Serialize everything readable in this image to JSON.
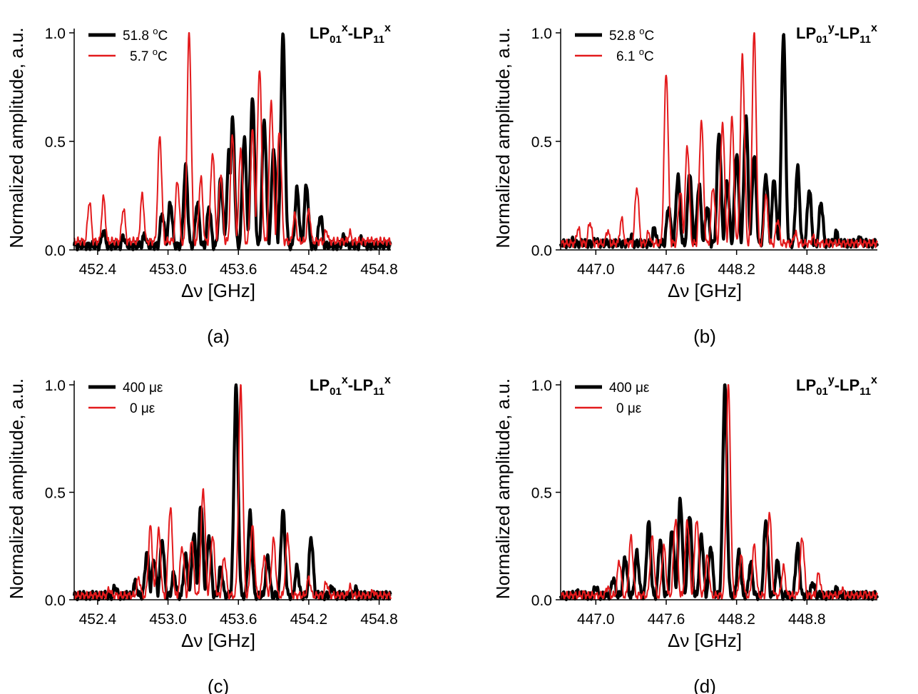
{
  "figure": {
    "panels": [
      {
        "id": "a",
        "panel_label": "(a)",
        "title": {
          "base1": "LP",
          "sub1": "01",
          "sup1": "x",
          "dash": "-",
          "base2": "LP",
          "sub2": "11",
          "sup2": "x"
        },
        "xlabel": "Δν [GHz]",
        "ylabel": "Normalized amplitude, a.u.",
        "xlim": [
          452.2,
          454.9
        ],
        "ylim": [
          0.0,
          1.0
        ],
        "xticks": [
          452.4,
          453.0,
          453.6,
          454.2,
          454.8
        ],
        "xtick_labels": [
          "452.4",
          "453.0",
          "453.6",
          "454.2",
          "454.8"
        ],
        "yticks": [
          0.0,
          0.5,
          1.0
        ],
        "ytick_labels": [
          "0.0",
          "0.5",
          "1.0"
        ],
        "series": [
          {
            "name": "51.8 °C",
            "legend_value": "51.8 ",
            "legend_sup": "o",
            "legend_unit": "C",
            "color": "#000000",
            "thick": true,
            "peaks": [
              [
                452.45,
                0.09
              ],
              [
                452.62,
                0.06
              ],
              [
                452.8,
                0.07
              ],
              [
                452.95,
                0.17
              ],
              [
                453.02,
                0.22
              ],
              [
                453.15,
                0.38
              ],
              [
                453.25,
                0.22
              ],
              [
                453.35,
                0.2
              ],
              [
                453.45,
                0.33
              ],
              [
                453.52,
                0.45
              ],
              [
                453.55,
                0.6
              ],
              [
                453.65,
                0.52
              ],
              [
                453.72,
                0.71
              ],
              [
                453.82,
                0.6
              ],
              [
                453.9,
                0.47
              ],
              [
                453.98,
                1.0
              ],
              [
                454.1,
                0.28
              ],
              [
                454.18,
                0.3
              ],
              [
                454.3,
                0.16
              ],
              [
                454.5,
                0.06
              ],
              [
                454.65,
                0.05
              ],
              [
                454.8,
                0.03
              ]
            ],
            "baseline": 0.02
          },
          {
            "name": "5.7 °C",
            "legend_value": "5.7 ",
            "legend_sup": "o",
            "legend_unit": "C",
            "color": "#e31a1c",
            "thick": false,
            "peaks": [
              [
                452.33,
                0.22
              ],
              [
                452.45,
                0.24
              ],
              [
                452.62,
                0.19
              ],
              [
                452.78,
                0.25
              ],
              [
                452.93,
                0.52
              ],
              [
                453.08,
                0.32
              ],
              [
                453.18,
                1.0
              ],
              [
                453.28,
                0.33
              ],
              [
                453.38,
                0.45
              ],
              [
                453.45,
                0.35
              ],
              [
                453.55,
                0.53
              ],
              [
                453.62,
                0.46
              ],
              [
                453.72,
                0.55
              ],
              [
                453.78,
                0.84
              ],
              [
                453.88,
                0.69
              ],
              [
                453.95,
                0.55
              ],
              [
                454.08,
                0.16
              ],
              [
                454.2,
                0.18
              ],
              [
                454.35,
                0.09
              ],
              [
                454.55,
                0.08
              ],
              [
                454.72,
                0.05
              ]
            ],
            "baseline": 0.04
          }
        ]
      },
      {
        "id": "b",
        "panel_label": "(b)",
        "title": {
          "base1": "LP",
          "sub1": "01",
          "sup1": "y",
          "dash": "-",
          "base2": "LP",
          "sub2": "11",
          "sup2": "x"
        },
        "xlabel": "Δν [GHz]",
        "ylabel": "Normalized amplitude, a.u.",
        "xlim": [
          446.7,
          449.4
        ],
        "ylim": [
          0.0,
          1.0
        ],
        "xticks": [
          447.0,
          447.6,
          448.2,
          448.8
        ],
        "xtick_labels": [
          "447.0",
          "447.6",
          "448.2",
          "448.8"
        ],
        "yticks": [
          0.0,
          0.5,
          1.0
        ],
        "ytick_labels": [
          "0.0",
          "0.5",
          "1.0"
        ],
        "series": [
          {
            "name": "52.8 °C",
            "legend_value": "52.8 ",
            "legend_sup": "o",
            "legend_unit": "C",
            "color": "#000000",
            "thick": true,
            "peaks": [
              [
                446.8,
                0.04
              ],
              [
                447.0,
                0.05
              ],
              [
                447.3,
                0.06
              ],
              [
                447.5,
                0.1
              ],
              [
                447.62,
                0.2
              ],
              [
                447.7,
                0.34
              ],
              [
                447.8,
                0.36
              ],
              [
                447.88,
                0.3
              ],
              [
                447.95,
                0.2
              ],
              [
                448.05,
                0.54
              ],
              [
                448.12,
                0.32
              ],
              [
                448.2,
                0.45
              ],
              [
                448.28,
                0.61
              ],
              [
                448.35,
                0.44
              ],
              [
                448.45,
                0.35
              ],
              [
                448.52,
                0.33
              ],
              [
                448.6,
                1.0
              ],
              [
                448.72,
                0.38
              ],
              [
                448.82,
                0.28
              ],
              [
                448.92,
                0.22
              ],
              [
                449.05,
                0.08
              ],
              [
                449.25,
                0.06
              ]
            ],
            "baseline": 0.03
          },
          {
            "name": "6.1 °C",
            "legend_value": "6.1 ",
            "legend_sup": "o",
            "legend_unit": "C",
            "color": "#e31a1c",
            "thick": false,
            "peaks": [
              [
                446.85,
                0.1
              ],
              [
                446.95,
                0.13
              ],
              [
                447.1,
                0.09
              ],
              [
                447.22,
                0.14
              ],
              [
                447.35,
                0.29
              ],
              [
                447.45,
                0.08
              ],
              [
                447.6,
                0.82
              ],
              [
                447.72,
                0.27
              ],
              [
                447.78,
                0.48
              ],
              [
                447.9,
                0.6
              ],
              [
                448.0,
                0.29
              ],
              [
                448.08,
                0.59
              ],
              [
                448.16,
                0.61
              ],
              [
                448.25,
                0.9
              ],
              [
                448.35,
                1.0
              ],
              [
                448.45,
                0.25
              ],
              [
                448.55,
                0.14
              ],
              [
                448.7,
                0.08
              ],
              [
                448.85,
                0.06
              ],
              [
                449.0,
                0.03
              ]
            ],
            "baseline": 0.03
          }
        ]
      },
      {
        "id": "c",
        "panel_label": "(c)",
        "title": {
          "base1": "LP",
          "sub1": "01",
          "sup1": "x",
          "dash": "-",
          "base2": "LP",
          "sub2": "11",
          "sup2": "x"
        },
        "xlabel": "Δν [GHz]",
        "ylabel": "Normalized amplitude, a.u.",
        "xlim": [
          452.2,
          454.9
        ],
        "ylim": [
          0.0,
          1.0
        ],
        "xticks": [
          452.4,
          453.0,
          453.6,
          454.2,
          454.8
        ],
        "xtick_labels": [
          "452.4",
          "453.0",
          "453.6",
          "454.2",
          "454.8"
        ],
        "yticks": [
          0.0,
          0.5,
          1.0
        ],
        "ytick_labels": [
          "0.0",
          "0.5",
          "1.0"
        ],
        "series": [
          {
            "name": "400 με",
            "legend_value": "400 με",
            "legend_sup": "",
            "legend_unit": "",
            "color": "#000000",
            "thick": true,
            "peaks": [
              [
                452.55,
                0.06
              ],
              [
                452.72,
                0.08
              ],
              [
                452.82,
                0.22
              ],
              [
                452.88,
                0.19
              ],
              [
                452.95,
                0.28
              ],
              [
                453.05,
                0.12
              ],
              [
                453.15,
                0.2
              ],
              [
                453.22,
                0.3
              ],
              [
                453.28,
                0.45
              ],
              [
                453.35,
                0.3
              ],
              [
                453.45,
                0.15
              ],
              [
                453.58,
                1.0
              ],
              [
                453.7,
                0.4
              ],
              [
                453.85,
                0.2
              ],
              [
                453.98,
                0.42
              ],
              [
                454.1,
                0.15
              ],
              [
                454.22,
                0.29
              ],
              [
                454.4,
                0.06
              ],
              [
                454.6,
                0.05
              ],
              [
                454.8,
                0.03
              ]
            ],
            "baseline": 0.02
          },
          {
            "name": "0 με",
            "legend_value": "0 με",
            "legend_sup": "",
            "legend_unit": "",
            "color": "#e31a1c",
            "thick": false,
            "peaks": [
              [
                452.5,
                0.05
              ],
              [
                452.75,
                0.1
              ],
              [
                452.85,
                0.34
              ],
              [
                452.92,
                0.32
              ],
              [
                453.02,
                0.43
              ],
              [
                453.12,
                0.25
              ],
              [
                453.2,
                0.28
              ],
              [
                453.3,
                0.52
              ],
              [
                453.38,
                0.3
              ],
              [
                453.48,
                0.2
              ],
              [
                453.62,
                1.0
              ],
              [
                453.72,
                0.34
              ],
              [
                453.82,
                0.2
              ],
              [
                453.9,
                0.28
              ],
              [
                454.02,
                0.3
              ],
              [
                454.2,
                0.1
              ],
              [
                454.35,
                0.08
              ],
              [
                454.55,
                0.06
              ],
              [
                454.75,
                0.04
              ]
            ],
            "baseline": 0.02
          }
        ]
      },
      {
        "id": "d",
        "panel_label": "(d)",
        "title": {
          "base1": "LP",
          "sub1": "01",
          "sup1": "y",
          "dash": "-",
          "base2": "LP",
          "sub2": "11",
          "sup2": "x"
        },
        "xlabel": "Δν [GHz]",
        "ylabel": "Normalized amplitude, a.u.",
        "xlim": [
          446.7,
          449.4
        ],
        "ylim": [
          0.0,
          1.0
        ],
        "xticks": [
          447.0,
          447.6,
          448.2,
          448.8
        ],
        "xtick_labels": [
          "447.0",
          "447.6",
          "448.2",
          "448.8"
        ],
        "yticks": [
          0.0,
          0.5,
          1.0
        ],
        "ytick_labels": [
          "0.0",
          "0.5",
          "1.0"
        ],
        "series": [
          {
            "name": "400 με",
            "legend_value": "400 με",
            "legend_sup": "",
            "legend_unit": "",
            "color": "#000000",
            "thick": true,
            "peaks": [
              [
                446.85,
                0.04
              ],
              [
                447.0,
                0.06
              ],
              [
                447.15,
                0.1
              ],
              [
                447.25,
                0.2
              ],
              [
                447.35,
                0.22
              ],
              [
                447.45,
                0.36
              ],
              [
                447.55,
                0.28
              ],
              [
                447.65,
                0.33
              ],
              [
                447.72,
                0.47
              ],
              [
                447.8,
                0.4
              ],
              [
                447.9,
                0.3
              ],
              [
                447.98,
                0.25
              ],
              [
                448.1,
                1.0
              ],
              [
                448.22,
                0.22
              ],
              [
                448.32,
                0.17
              ],
              [
                448.45,
                0.37
              ],
              [
                448.55,
                0.18
              ],
              [
                448.72,
                0.25
              ],
              [
                448.85,
                0.08
              ],
              [
                449.05,
                0.05
              ],
              [
                449.25,
                0.03
              ]
            ],
            "baseline": 0.02
          },
          {
            "name": "0 με",
            "legend_value": "0 με",
            "legend_sup": "",
            "legend_unit": "",
            "color": "#e31a1c",
            "thick": false,
            "peaks": [
              [
                446.9,
                0.03
              ],
              [
                447.1,
                0.06
              ],
              [
                447.2,
                0.18
              ],
              [
                447.3,
                0.29
              ],
              [
                447.48,
                0.29
              ],
              [
                447.58,
                0.25
              ],
              [
                447.68,
                0.38
              ],
              [
                447.78,
                0.37
              ],
              [
                447.86,
                0.38
              ],
              [
                447.95,
                0.2
              ],
              [
                448.13,
                1.0
              ],
              [
                448.24,
                0.2
              ],
              [
                448.35,
                0.25
              ],
              [
                448.48,
                0.41
              ],
              [
                448.6,
                0.15
              ],
              [
                448.76,
                0.29
              ],
              [
                448.9,
                0.12
              ],
              [
                449.1,
                0.05
              ],
              [
                449.3,
                0.03
              ]
            ],
            "baseline": 0.02
          }
        ]
      }
    ]
  }
}
